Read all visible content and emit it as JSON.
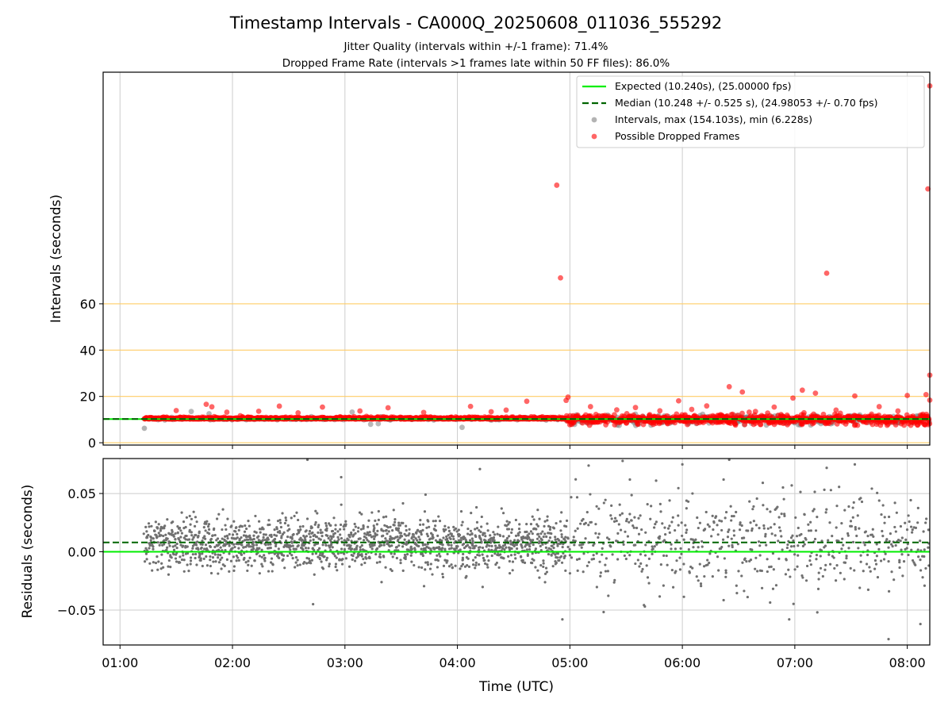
{
  "chart_data": [
    {
      "type": "scatter",
      "title": "Timestamp Intervals - CA000Q_20250608_011036_555292",
      "subtitle_1": "Jitter Quality (intervals within +/-1 frame): 71.4%",
      "subtitle_2": "Dropped Frame Rate (intervals >1 frames late within 50 FF files): 86.0%",
      "xlabel": "",
      "ylabel": "Intervals (seconds)",
      "xlim": [
        "00:51",
        "08:12"
      ],
      "ylim": [
        -1,
        160
      ],
      "grid": true,
      "legend_position": "top-right",
      "y_tick_labels": [
        "0",
        "20",
        "40",
        "60"
      ],
      "y_ticks": [
        0,
        20,
        40,
        60
      ],
      "threshold_lines": [
        0,
        20,
        40,
        60
      ],
      "colors": {
        "expected": "#00ee00",
        "median": "#006400",
        "intervals": "#808080",
        "dropped": "#ff0000",
        "threshold": "#ffcc66",
        "grid": "#cccccc"
      },
      "series": [
        {
          "name": "Expected (10.240s), (25.00000 fps)",
          "kind": "hline",
          "value": 10.24
        },
        {
          "name": "Median (10.248 +/- 0.525 s), (24.98053 +/- 0.70 fps)",
          "kind": "hline-dashed",
          "value": 10.248
        },
        {
          "name": "Intervals, max (154.103s), min (6.228s)",
          "kind": "scatter",
          "time_range": [
            "01:13",
            "08:12"
          ],
          "typical": 10.24,
          "max": 154.103,
          "min": 6.228
        },
        {
          "name": "Possible Dropped Frames",
          "kind": "scatter",
          "time_range": [
            "01:17",
            "08:12"
          ],
          "outliers": [
            {
              "time": "04:53",
              "value": 111.2
            },
            {
              "time": "04:55",
              "value": 71.2
            },
            {
              "time": "07:17",
              "value": 73.2
            },
            {
              "time": "08:11",
              "value": 109.6
            },
            {
              "time": "08:12",
              "value": 154.1
            },
            {
              "time": "08:12",
              "value": 29.2
            },
            {
              "time": "06:25",
              "value": 24.2
            },
            {
              "time": "06:32",
              "value": 21.9
            },
            {
              "time": "07:04",
              "value": 22.7
            },
            {
              "time": "07:11",
              "value": 21.4
            },
            {
              "time": "07:32",
              "value": 20.2
            },
            {
              "time": "08:00",
              "value": 20.4
            },
            {
              "time": "08:10",
              "value": 20.8
            },
            {
              "time": "04:59",
              "value": 19.7
            },
            {
              "time": "04:58",
              "value": 18.3
            },
            {
              "time": "05:58",
              "value": 18.1
            },
            {
              "time": "06:59",
              "value": 19.3
            },
            {
              "time": "08:12",
              "value": 18.4
            },
            {
              "time": "04:37",
              "value": 17.9
            },
            {
              "time": "01:46",
              "value": 16.6
            },
            {
              "time": "01:49",
              "value": 15.5
            },
            {
              "time": "02:25",
              "value": 15.8
            },
            {
              "time": "02:48",
              "value": 15.4
            },
            {
              "time": "03:23",
              "value": 15.1
            },
            {
              "time": "04:07",
              "value": 15.7
            },
            {
              "time": "04:26",
              "value": 14.1
            },
            {
              "time": "05:11",
              "value": 15.6
            },
            {
              "time": "05:35",
              "value": 15.2
            },
            {
              "time": "06:13",
              "value": 15.9
            },
            {
              "time": "06:49",
              "value": 15.4
            },
            {
              "time": "07:45",
              "value": 15.6
            },
            {
              "time": "01:30",
              "value": 13.9
            },
            {
              "time": "01:57",
              "value": 13.2
            },
            {
              "time": "02:14",
              "value": 13.6
            },
            {
              "time": "02:35",
              "value": 12.9
            },
            {
              "time": "03:08",
              "value": 13.7
            },
            {
              "time": "03:42",
              "value": 13.1
            },
            {
              "time": "04:18",
              "value": 13.4
            },
            {
              "time": "05:25",
              "value": 14.2
            },
            {
              "time": "05:48",
              "value": 13.8
            },
            {
              "time": "06:05",
              "value": 14.4
            },
            {
              "time": "06:39",
              "value": 13.5
            },
            {
              "time": "07:22",
              "value": 14.1
            },
            {
              "time": "07:55",
              "value": 13.7
            }
          ]
        }
      ]
    },
    {
      "type": "scatter",
      "xlabel": "Time (UTC)",
      "ylabel": "Residuals (seconds)",
      "xlim": [
        "00:51",
        "08:12"
      ],
      "ylim": [
        -0.08,
        0.08
      ],
      "grid": true,
      "x_tick_labels": [
        "01:00",
        "02:00",
        "03:00",
        "04:00",
        "05:00",
        "06:00",
        "07:00",
        "08:00"
      ],
      "x_ticks": [
        "01:00",
        "02:00",
        "03:00",
        "04:00",
        "05:00",
        "06:00",
        "07:00",
        "08:00"
      ],
      "y_tick_labels": [
        "0.05",
        "0.00",
        "−0.05"
      ],
      "y_ticks": [
        0.05,
        0.0,
        -0.05
      ],
      "series": [
        {
          "kind": "hline",
          "value": 0.0
        },
        {
          "kind": "hline-dashed",
          "value": 0.008
        },
        {
          "kind": "scatter",
          "time_range": [
            "01:13",
            "08:12"
          ],
          "outliers": [
            {
              "time": "02:40",
              "value": 0.079
            },
            {
              "time": "02:58",
              "value": 0.064
            },
            {
              "time": "03:43",
              "value": 0.049
            },
            {
              "time": "04:12",
              "value": 0.071
            },
            {
              "time": "05:10",
              "value": 0.074
            },
            {
              "time": "05:32",
              "value": 0.062
            },
            {
              "time": "05:46",
              "value": 0.061
            },
            {
              "time": "06:00",
              "value": 0.075
            },
            {
              "time": "06:22",
              "value": 0.062
            },
            {
              "time": "06:25",
              "value": 0.079
            },
            {
              "time": "07:17",
              "value": 0.072
            },
            {
              "time": "07:32",
              "value": 0.075
            },
            {
              "time": "02:43",
              "value": -0.045
            },
            {
              "time": "04:56",
              "value": -0.058
            },
            {
              "time": "05:40",
              "value": -0.047
            },
            {
              "time": "06:57",
              "value": -0.058
            },
            {
              "time": "07:12",
              "value": -0.052
            },
            {
              "time": "07:50",
              "value": -0.075
            },
            {
              "time": "08:07",
              "value": -0.062
            }
          ]
        }
      ]
    }
  ]
}
